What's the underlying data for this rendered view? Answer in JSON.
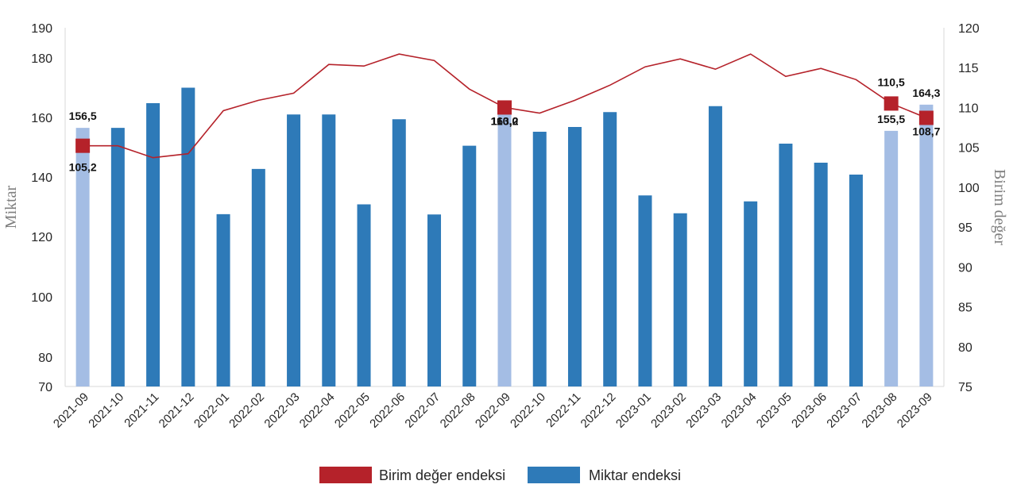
{
  "chart_data": {
    "type": "bar",
    "categories": [
      "2021-09",
      "2021-10",
      "2021-11",
      "2021-12",
      "2022-01",
      "2022-02",
      "2022-03",
      "2022-04",
      "2022-05",
      "2022-06",
      "2022-07",
      "2022-08",
      "2022-09",
      "2022-10",
      "2022-11",
      "2022-12",
      "2023-01",
      "2023-02",
      "2023-03",
      "2023-04",
      "2023-05",
      "2023-06",
      "2023-07",
      "2023-08",
      "2023-09"
    ],
    "series": [
      {
        "name": "Miktar endeksi",
        "type": "bar",
        "axis": "left",
        "color": "#2e7ab8",
        "highlight_color": "#a4bde4",
        "highlighted": [
          "2021-09",
          "2022-09",
          "2023-08",
          "2023-09"
        ],
        "values": [
          156.5,
          156.5,
          164.8,
          170.0,
          127.5,
          142.7,
          161.0,
          161.0,
          130.8,
          159.4,
          127.4,
          150.5,
          163.2,
          155.2,
          156.8,
          161.8,
          133.8,
          127.8,
          163.8,
          131.8,
          151.2,
          144.8,
          140.8,
          155.5,
          164.3
        ],
        "labels": {
          "2021-09": "156,5",
          "2022-09": "163,2",
          "2023-08": "155,5",
          "2023-09": "164,3"
        }
      },
      {
        "name": "Birim değer endeksi",
        "type": "line",
        "axis": "right",
        "color": "#b5222a",
        "values": [
          105.2,
          105.2,
          103.7,
          104.2,
          109.6,
          110.9,
          111.8,
          115.4,
          115.2,
          116.7,
          115.9,
          112.3,
          110.0,
          109.3,
          110.9,
          112.8,
          115.1,
          116.1,
          114.8,
          116.7,
          113.9,
          114.9,
          113.5,
          110.5,
          108.7
        ],
        "markers": [
          "2021-09",
          "2022-09",
          "2023-08",
          "2023-09"
        ],
        "labels": {
          "2021-09": "105,2",
          "2022-09": "110,0",
          "2023-08": "110,5",
          "2023-09": "108,7"
        }
      }
    ],
    "ylabel": "Miktar",
    "y2label": "Birim değer",
    "yticks": [
      "70",
      "80",
      "100",
      "120",
      "140",
      "160",
      "180",
      "190"
    ],
    "ylim": [
      70,
      190
    ],
    "y2ticks": [
      "75",
      "80",
      "85",
      "90",
      "95",
      "100",
      "105",
      "110",
      "115",
      "120"
    ],
    "y2lim": [
      75,
      120
    ],
    "legend_position": "bottom",
    "grid": false
  }
}
